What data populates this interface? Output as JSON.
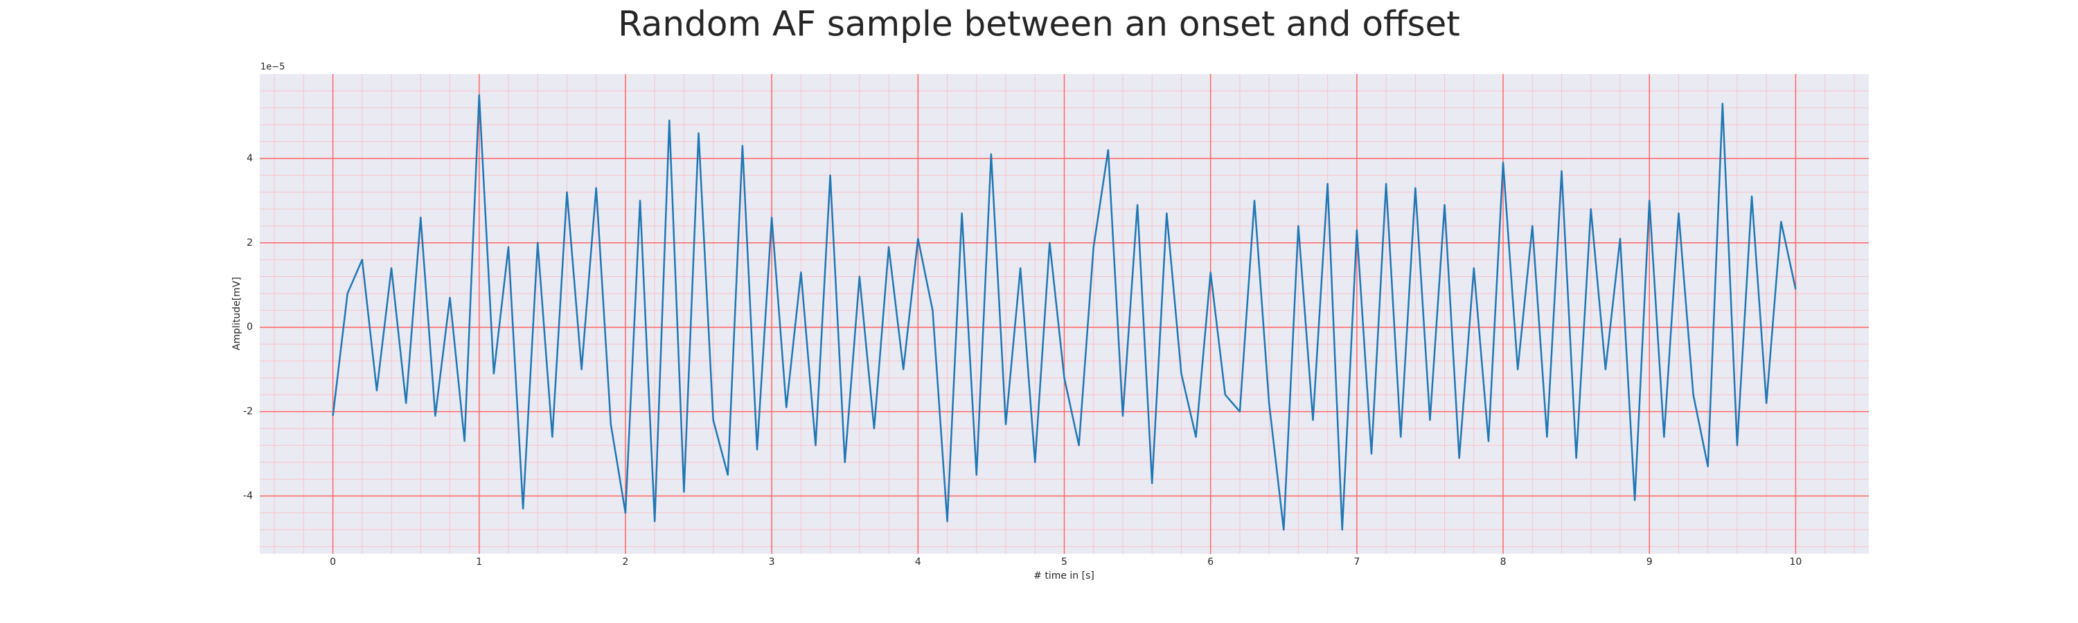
{
  "chart_data": {
    "type": "line",
    "title": "Random AF sample between an onset and offset",
    "xlabel": "# time in [s]",
    "ylabel": "Amplitude[mV]",
    "offset_label": "1e−5",
    "x": [
      0,
      0.1,
      0.2,
      0.3,
      0.4,
      0.5,
      0.6,
      0.7,
      0.8,
      0.9,
      1,
      1.1,
      1.2,
      1.3,
      1.4,
      1.5,
      1.6,
      1.7,
      1.8,
      1.9,
      2,
      2.1,
      2.2,
      2.3,
      2.4,
      2.5,
      2.6,
      2.7,
      2.8,
      2.9,
      3,
      3.1,
      3.2,
      3.3,
      3.4,
      3.5,
      3.6,
      3.7,
      3.8,
      3.9,
      4,
      4.1,
      4.2,
      4.3,
      4.4,
      4.5,
      4.6,
      4.7,
      4.8,
      4.9,
      5,
      5.1,
      5.2,
      5.3,
      5.4,
      5.5,
      5.6,
      5.7,
      5.8,
      5.9,
      6,
      6.1,
      6.2,
      6.3,
      6.4,
      6.5,
      6.6,
      6.7,
      6.8,
      6.9,
      7,
      7.1,
      7.2,
      7.3,
      7.4,
      7.5,
      7.6,
      7.7,
      7.8,
      7.9,
      8,
      8.1,
      8.2,
      8.3,
      8.4,
      8.5,
      8.6,
      8.7,
      8.8,
      8.9,
      9,
      9.1,
      9.2,
      9.3,
      9.4,
      9.5,
      9.6,
      9.7,
      9.8,
      9.9,
      10
    ],
    "series": [
      {
        "color": "#1f77b4",
        "values": [
          -2.1,
          0.8,
          1.6,
          -1.5,
          1.4,
          -1.8,
          2.6,
          -2.1,
          0.7,
          -2.7,
          5.5,
          -1.1,
          1.9,
          -4.3,
          2.0,
          -2.6,
          3.2,
          -1.0,
          3.3,
          -2.3,
          -4.4,
          3.0,
          -4.6,
          4.9,
          -3.9,
          4.6,
          -2.2,
          -3.5,
          4.3,
          -2.9,
          2.6,
          -1.9,
          1.3,
          -2.8,
          3.6,
          -3.2,
          1.2,
          -2.4,
          1.9,
          -1.0,
          2.1,
          0.4,
          -4.6,
          2.7,
          -3.5,
          4.1,
          -2.3,
          1.4,
          -3.2,
          2.0,
          -1.2,
          -2.8,
          1.9,
          4.2,
          -2.1,
          2.9,
          -3.7,
          2.7,
          -1.1,
          -2.6,
          1.3,
          -1.6,
          -2.0,
          3.0,
          -1.8,
          -4.8,
          2.4,
          -2.2,
          3.4,
          -4.8,
          2.3,
          -3.0,
          3.4,
          -2.6,
          3.3,
          -2.2,
          2.9,
          -3.1,
          1.4,
          -2.7,
          3.9,
          -1.0,
          2.4,
          -2.6,
          3.7,
          -3.1,
          2.8,
          -1.0,
          2.1,
          -4.1,
          3.0,
          -2.6,
          2.7,
          -1.6,
          -3.3,
          5.3,
          -2.8,
          3.1,
          -1.8,
          2.5,
          0.9
        ]
      }
    ],
    "xlim": [
      -0.5,
      10.5
    ],
    "ylim": [
      -5.37,
      6.0
    ],
    "xticks": [
      0,
      1,
      2,
      3,
      4,
      5,
      6,
      7,
      8,
      9,
      10
    ],
    "yticks": [
      -4,
      -2,
      0,
      2,
      4
    ],
    "grid": true,
    "minor_grid": true,
    "background": "#eaeaf2",
    "grid_color": "#ff6666",
    "minor_grid_color": "#f7c4cc"
  }
}
